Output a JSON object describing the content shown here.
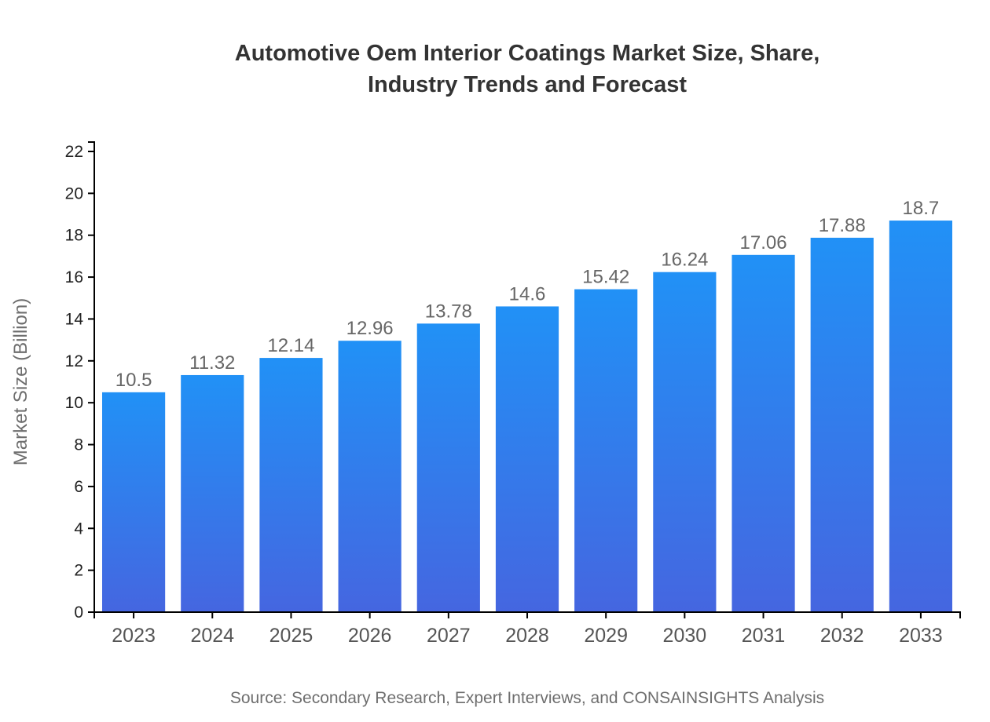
{
  "page": {
    "title_line1": "Automotive Oem Interior Coatings Market Size, Share,",
    "title_line2": "Industry Trends and Forecast",
    "source": "Source: Secondary Research, Expert Interviews, and CONSAINSIGHTS Analysis"
  },
  "colors": {
    "bar_gradient_top": "#2191f6",
    "bar_gradient_bottom": "#4566e0",
    "axis_line": "#000000",
    "title_text": "#333333",
    "value_label": "#666666",
    "x_tick_label": "#555555",
    "y_tick_label": "#222222",
    "axis_title": "#6e6e6e",
    "source_text": "#6e6e6e",
    "background": "#ffffff"
  },
  "chart_data": {
    "type": "bar",
    "title": "Automotive Oem Interior Coatings Market Size, Share, Industry Trends and Forecast",
    "categories": [
      "2023",
      "2024",
      "2025",
      "2026",
      "2027",
      "2028",
      "2029",
      "2030",
      "2031",
      "2032",
      "2033"
    ],
    "values": [
      10.5,
      11.32,
      12.14,
      12.96,
      13.78,
      14.6,
      15.42,
      16.24,
      17.06,
      17.88,
      18.7
    ],
    "xlabel": "",
    "ylabel": "Market Size (Billion)",
    "ylim": [
      0,
      22
    ],
    "ytick_step": 2,
    "yticks": [
      0,
      2,
      4,
      6,
      8,
      10,
      12,
      14,
      16,
      18,
      20,
      22
    ],
    "grid": false,
    "legend": false,
    "value_labels_shown": true,
    "source": "Source: Secondary Research, Expert Interviews, and CONSAINSIGHTS Analysis"
  }
}
